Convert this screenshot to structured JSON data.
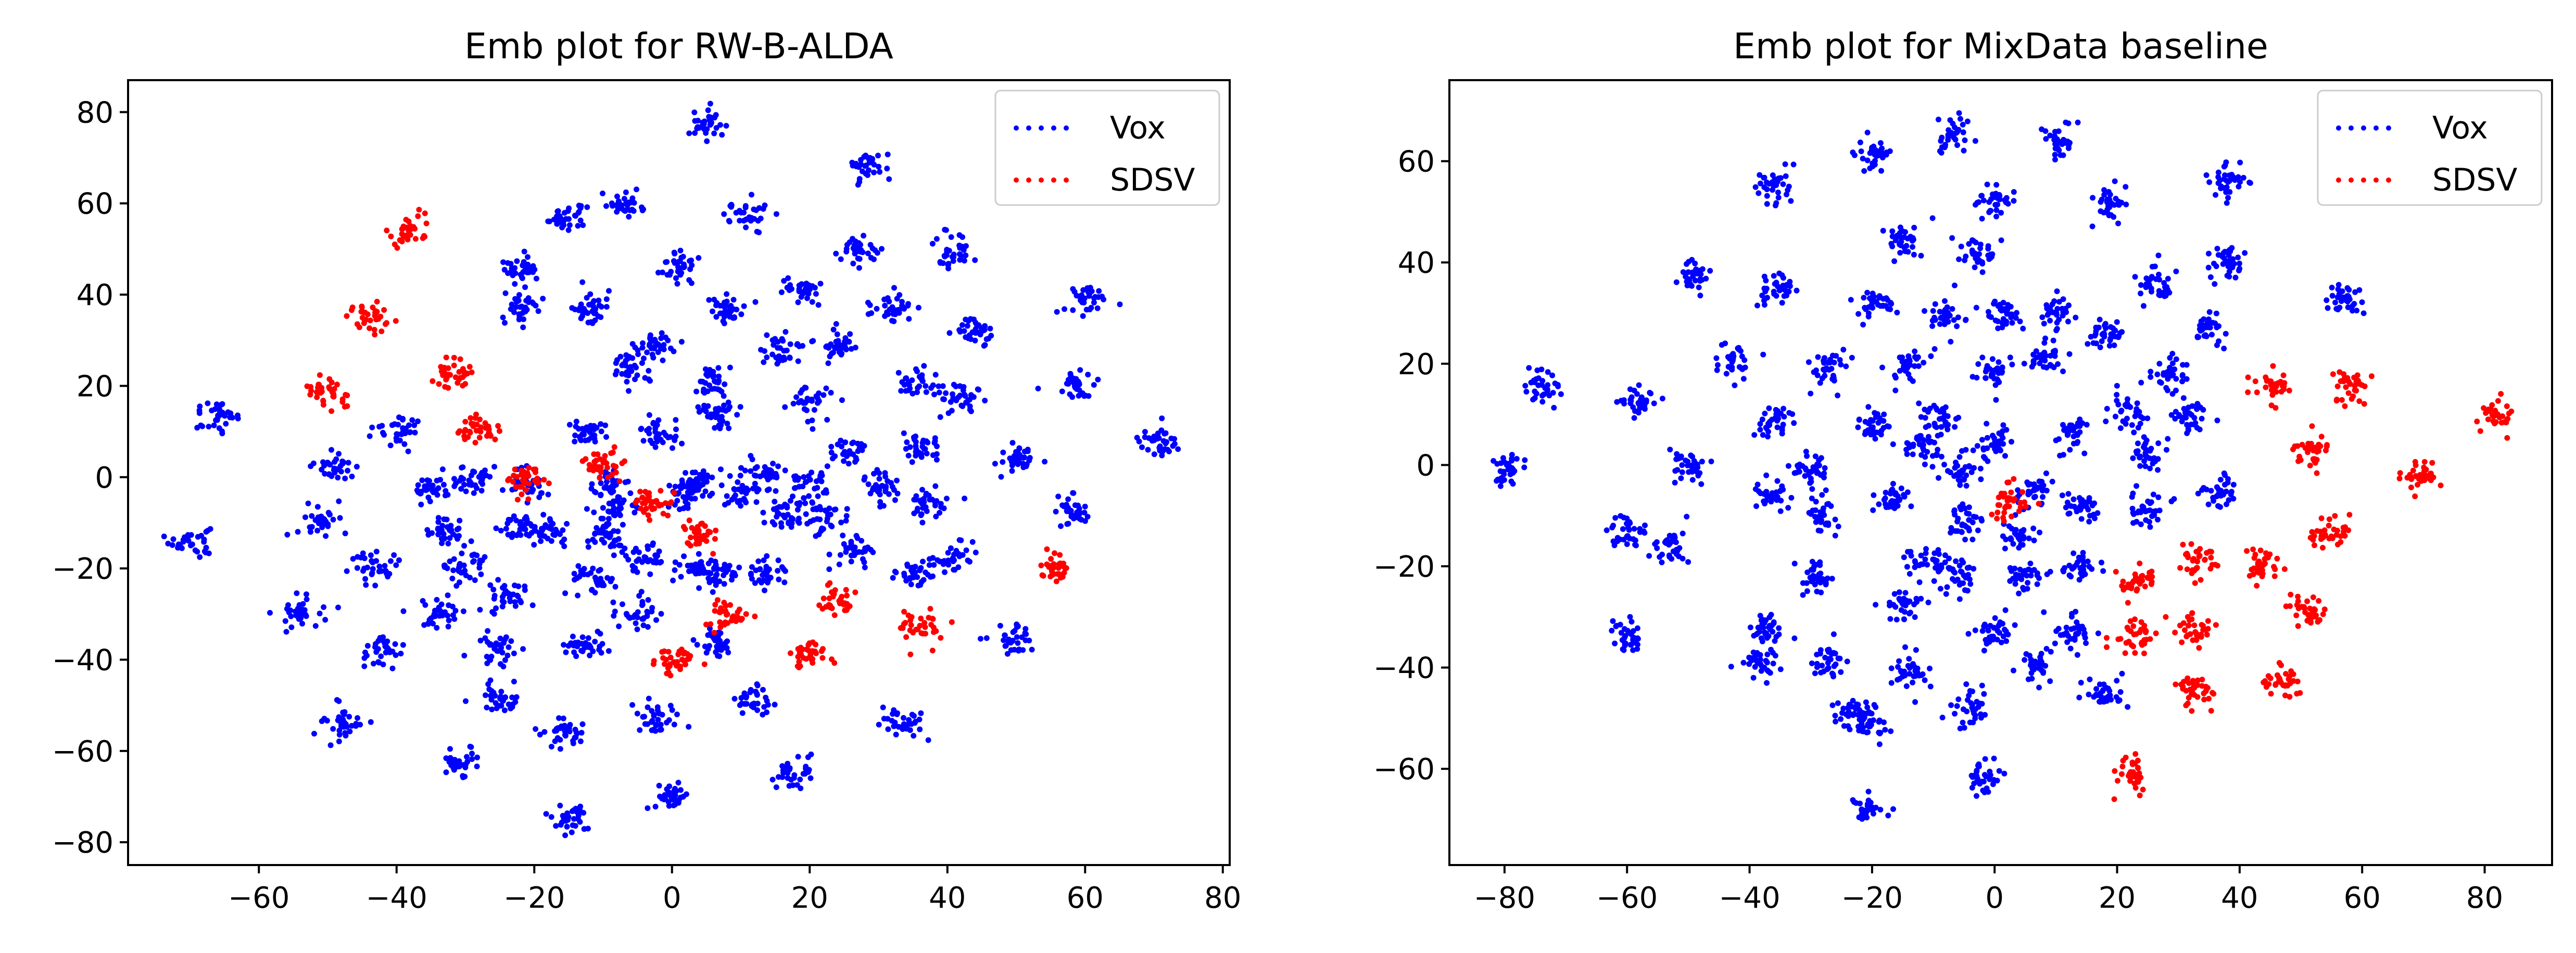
{
  "chart_data": [
    {
      "type": "scatter",
      "title": "Emb plot for RW-B-ALDA",
      "xlabel": "",
      "ylabel": "",
      "xlim": [
        -79,
        81
      ],
      "ylim": [
        -85,
        87
      ],
      "xticks": [
        -60,
        -40,
        -20,
        0,
        20,
        40,
        60,
        80
      ],
      "yticks": [
        -80,
        -60,
        -40,
        -20,
        0,
        20,
        40,
        60,
        80
      ],
      "legend": {
        "placement": "top-right"
      },
      "grid": false,
      "series": [
        {
          "name": "Vox",
          "color": "#0000ff",
          "points": [
            [
              -70,
              -14
            ],
            [
              -66,
              13
            ],
            [
              -54,
              -30
            ],
            [
              -51,
              -10
            ],
            [
              -49,
              2
            ],
            [
              -48,
              -54
            ],
            [
              -43,
              -20
            ],
            [
              -42,
              -38
            ],
            [
              -40,
              10
            ],
            [
              -35,
              -3
            ],
            [
              -34,
              -30
            ],
            [
              -33,
              -12
            ],
            [
              -31,
              -62
            ],
            [
              -30,
              -19
            ],
            [
              -29,
              -1
            ],
            [
              -25,
              -48
            ],
            [
              -25,
              -38
            ],
            [
              -24,
              -26
            ],
            [
              -22,
              -11
            ],
            [
              -22,
              46
            ],
            [
              -22,
              37
            ],
            [
              -21,
              -1
            ],
            [
              -18,
              -12
            ],
            [
              -16,
              -56
            ],
            [
              -15,
              -75
            ],
            [
              -15,
              57
            ],
            [
              -13,
              -37
            ],
            [
              -12,
              -22
            ],
            [
              -12,
              37
            ],
            [
              -12,
              10
            ],
            [
              -10,
              -13
            ],
            [
              -9,
              -2
            ],
            [
              -8,
              -7
            ],
            [
              -7,
              60
            ],
            [
              -6,
              24
            ],
            [
              -5,
              -30
            ],
            [
              -4,
              -18
            ],
            [
              -3,
              29
            ],
            [
              -2,
              10
            ],
            [
              -2,
              -53
            ],
            [
              0,
              -70
            ],
            [
              1,
              46
            ],
            [
              2,
              -4
            ],
            [
              3,
              -20
            ],
            [
              4,
              -1
            ],
            [
              5,
              77
            ],
            [
              6,
              -36
            ],
            [
              6,
              21
            ],
            [
              7,
              -21
            ],
            [
              7,
              14
            ],
            [
              8,
              37
            ],
            [
              10,
              -4
            ],
            [
              11,
              57
            ],
            [
              12,
              -49
            ],
            [
              14,
              0
            ],
            [
              14,
              -21
            ],
            [
              16,
              28
            ],
            [
              17,
              -8
            ],
            [
              18,
              -65
            ],
            [
              19,
              41
            ],
            [
              20,
              -2
            ],
            [
              20,
              16
            ],
            [
              22,
              -9
            ],
            [
              24,
              29
            ],
            [
              26,
              6
            ],
            [
              27,
              -16
            ],
            [
              27,
              50
            ],
            [
              28,
              68
            ],
            [
              30,
              -2
            ],
            [
              32,
              37
            ],
            [
              33,
              -54
            ],
            [
              35,
              -21
            ],
            [
              36,
              6
            ],
            [
              36,
              21
            ],
            [
              37,
              -6
            ],
            [
              41,
              49
            ],
            [
              41,
              -18
            ],
            [
              42,
              17
            ],
            [
              44,
              32
            ],
            [
              50,
              4
            ],
            [
              50,
              -36
            ],
            [
              58,
              -7
            ],
            [
              59,
              20
            ],
            [
              60,
              39
            ],
            [
              71,
              8
            ]
          ]
        },
        {
          "name": "SDSV",
          "color": "#ff0000",
          "points": [
            [
              -50,
              19
            ],
            [
              -44,
              35
            ],
            [
              -38,
              54
            ],
            [
              -32,
              22
            ],
            [
              -28,
              10
            ],
            [
              -21,
              -1
            ],
            [
              -10,
              3
            ],
            [
              -3,
              -6
            ],
            [
              0,
              -40
            ],
            [
              4,
              -13
            ],
            [
              8,
              -30
            ],
            [
              20,
              -39
            ],
            [
              24,
              -27
            ],
            [
              36,
              -33
            ],
            [
              56,
              -20
            ]
          ]
        }
      ]
    },
    {
      "type": "scatter",
      "title": "Emb plot for MixData baseline",
      "xlabel": "",
      "ylabel": "",
      "xlim": [
        -89,
        91
      ],
      "ylim": [
        -79,
        76
      ],
      "xticks": [
        -80,
        -60,
        -40,
        -20,
        0,
        20,
        40,
        60,
        80
      ],
      "yticks": [
        -60,
        -40,
        -20,
        0,
        20,
        40,
        60
      ],
      "legend": {
        "placement": "top-right"
      },
      "grid": false,
      "series": [
        {
          "name": "Vox",
          "color": "#0000ff",
          "points": [
            [
              -80,
              -1
            ],
            [
              -74,
              16
            ],
            [
              -60,
              -34
            ],
            [
              -60,
              -13
            ],
            [
              -58,
              13
            ],
            [
              -53,
              -16
            ],
            [
              -50,
              0
            ],
            [
              -49,
              37
            ],
            [
              -43,
              21
            ],
            [
              -38,
              -39
            ],
            [
              -37,
              -32
            ],
            [
              -36,
              -6
            ],
            [
              -36,
              9
            ],
            [
              -36,
              55
            ],
            [
              -35,
              35
            ],
            [
              -30,
              -1
            ],
            [
              -29,
              -22
            ],
            [
              -28,
              -10
            ],
            [
              -27,
              -39
            ],
            [
              -27,
              19
            ],
            [
              -23,
              -49
            ],
            [
              -21,
              -68
            ],
            [
              -20,
              -51
            ],
            [
              -20,
              8
            ],
            [
              -20,
              32
            ],
            [
              -20,
              61
            ],
            [
              -17,
              -7
            ],
            [
              -15,
              -28
            ],
            [
              -15,
              44
            ],
            [
              -14,
              -41
            ],
            [
              -14,
              20
            ],
            [
              -12,
              3
            ],
            [
              -11,
              -19
            ],
            [
              -9,
              9
            ],
            [
              -8,
              29
            ],
            [
              -7,
              65
            ],
            [
              -6,
              -22
            ],
            [
              -5,
              -1
            ],
            [
              -5,
              -11
            ],
            [
              -4,
              -48
            ],
            [
              -3,
              42
            ],
            [
              -2,
              -62
            ],
            [
              0,
              -33
            ],
            [
              0,
              4
            ],
            [
              0,
              18
            ],
            [
              0,
              52
            ],
            [
              1,
              30
            ],
            [
              4,
              -14
            ],
            [
              5,
              -22
            ],
            [
              6,
              -5
            ],
            [
              7,
              -40
            ],
            [
              8,
              21
            ],
            [
              10,
              30
            ],
            [
              11,
              64
            ],
            [
              13,
              6
            ],
            [
              13,
              -33
            ],
            [
              14,
              -8
            ],
            [
              14,
              -20
            ],
            [
              18,
              -45
            ],
            [
              18,
              26
            ],
            [
              19,
              52
            ],
            [
              22,
              10
            ],
            [
              25,
              -9
            ],
            [
              25,
              2
            ],
            [
              26,
              36
            ],
            [
              28,
              18
            ],
            [
              32,
              10
            ],
            [
              35,
              27
            ],
            [
              37,
              -5
            ],
            [
              38,
              40
            ],
            [
              38,
              56
            ],
            [
              57,
              33
            ]
          ]
        },
        {
          "name": "SDSV",
          "color": "#ff0000",
          "points": [
            [
              2,
              -8
            ],
            [
              23,
              -23
            ],
            [
              23,
              -34
            ],
            [
              23,
              -61
            ],
            [
              33,
              -19
            ],
            [
              33,
              -32
            ],
            [
              33,
              -44
            ],
            [
              44,
              -20
            ],
            [
              45,
              16
            ],
            [
              47,
              -43
            ],
            [
              51,
              -29
            ],
            [
              52,
              3
            ],
            [
              55,
              -13
            ],
            [
              58,
              16
            ],
            [
              70,
              -2
            ],
            [
              82,
              10
            ]
          ]
        }
      ]
    }
  ]
}
